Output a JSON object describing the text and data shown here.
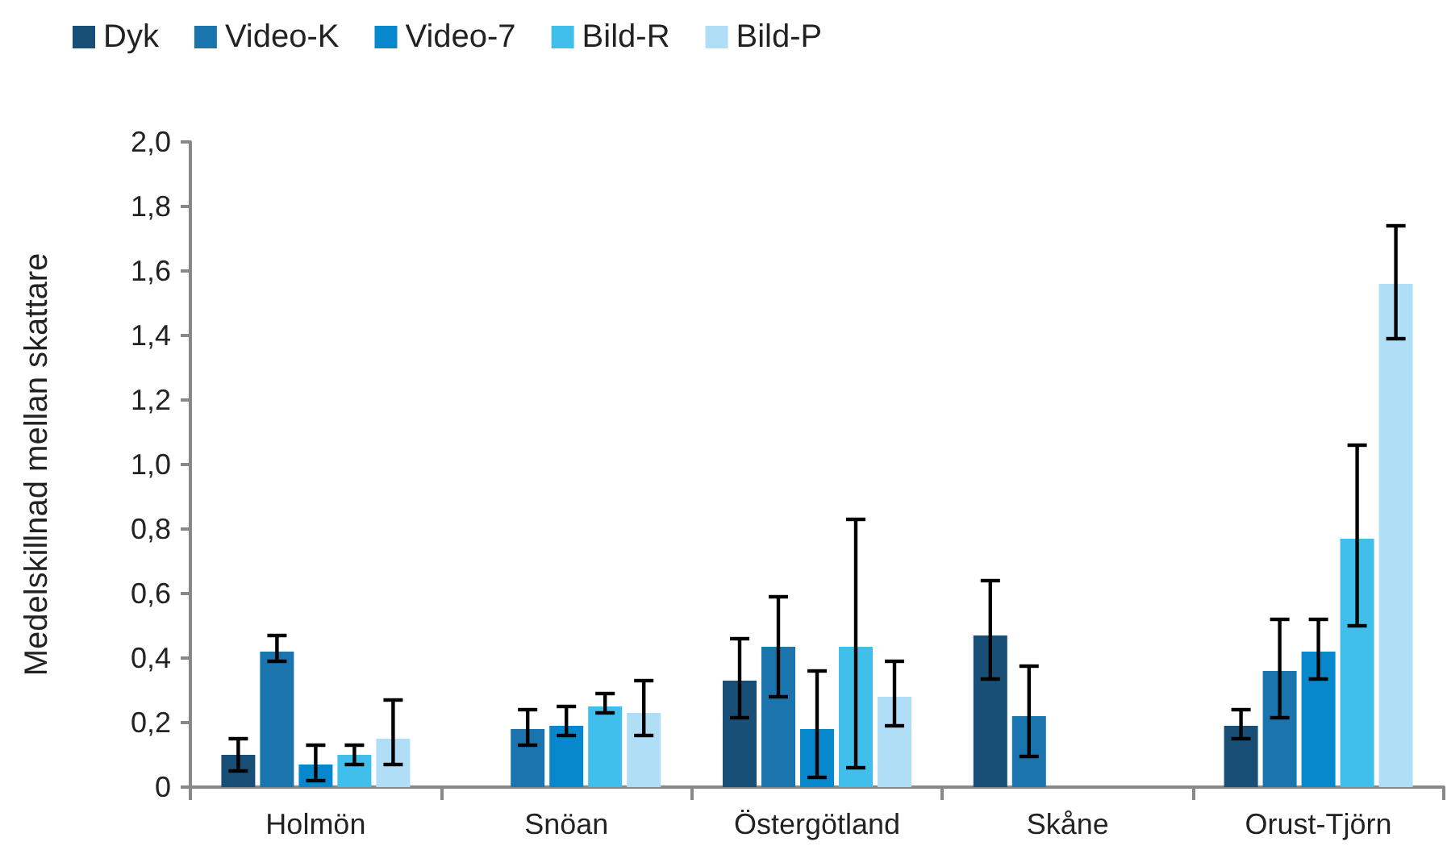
{
  "chart_data": {
    "type": "bar",
    "ylabel": "Medelskillnad mellan skattare",
    "categories": [
      "Holmön",
      "Snöan",
      "Östergötland",
      "Skåne",
      "Orust-Tjörn"
    ],
    "series": [
      {
        "name": "Dyk",
        "color": "#174f77",
        "values": [
          0.1,
          null,
          0.33,
          0.47,
          0.19
        ],
        "errors": [
          [
            0.05,
            0.15
          ],
          null,
          [
            0.215,
            0.46
          ],
          [
            0.335,
            0.64
          ],
          [
            0.15,
            0.24
          ]
        ]
      },
      {
        "name": "Video-K",
        "color": "#1a74ae",
        "values": [
          0.42,
          0.18,
          0.435,
          0.22,
          0.36
        ],
        "errors": [
          [
            0.39,
            0.47
          ],
          [
            0.13,
            0.24
          ],
          [
            0.28,
            0.59
          ],
          [
            0.095,
            0.375
          ],
          [
            0.215,
            0.52
          ]
        ]
      },
      {
        "name": "Video-7",
        "color": "#0788cd",
        "values": [
          0.07,
          0.19,
          0.18,
          null,
          0.42
        ],
        "errors": [
          [
            0.02,
            0.13
          ],
          [
            0.16,
            0.25
          ],
          [
            0.03,
            0.36
          ],
          null,
          [
            0.335,
            0.52
          ]
        ]
      },
      {
        "name": "Bild-R",
        "color": "#40bfec",
        "values": [
          0.1,
          0.25,
          0.435,
          null,
          0.77
        ],
        "errors": [
          [
            0.07,
            0.13
          ],
          [
            0.23,
            0.29
          ],
          [
            0.06,
            0.83
          ],
          null,
          [
            0.5,
            1.06
          ]
        ]
      },
      {
        "name": "Bild-P",
        "color": "#b0def7",
        "values": [
          0.15,
          0.23,
          0.28,
          null,
          1.56
        ],
        "errors": [
          [
            0.07,
            0.27
          ],
          [
            0.16,
            0.33
          ],
          [
            0.19,
            0.39
          ],
          null,
          [
            1.39,
            1.74
          ]
        ]
      }
    ],
    "ylim": [
      0,
      2.0
    ],
    "yticks": [
      {
        "value": 0,
        "label": "0"
      },
      {
        "value": 0.2,
        "label": "0,2"
      },
      {
        "value": 0.4,
        "label": "0,4"
      },
      {
        "value": 0.6,
        "label": "0,6"
      },
      {
        "value": 0.8,
        "label": "0,8"
      },
      {
        "value": 1.0,
        "label": "1,0"
      },
      {
        "value": 1.2,
        "label": "1,2"
      },
      {
        "value": 1.4,
        "label": "1,4"
      },
      {
        "value": 1.6,
        "label": "1,6"
      },
      {
        "value": 1.8,
        "label": "1,8"
      },
      {
        "value": 2.0,
        "label": "2,0"
      }
    ],
    "grid": false,
    "legend": "top left"
  }
}
